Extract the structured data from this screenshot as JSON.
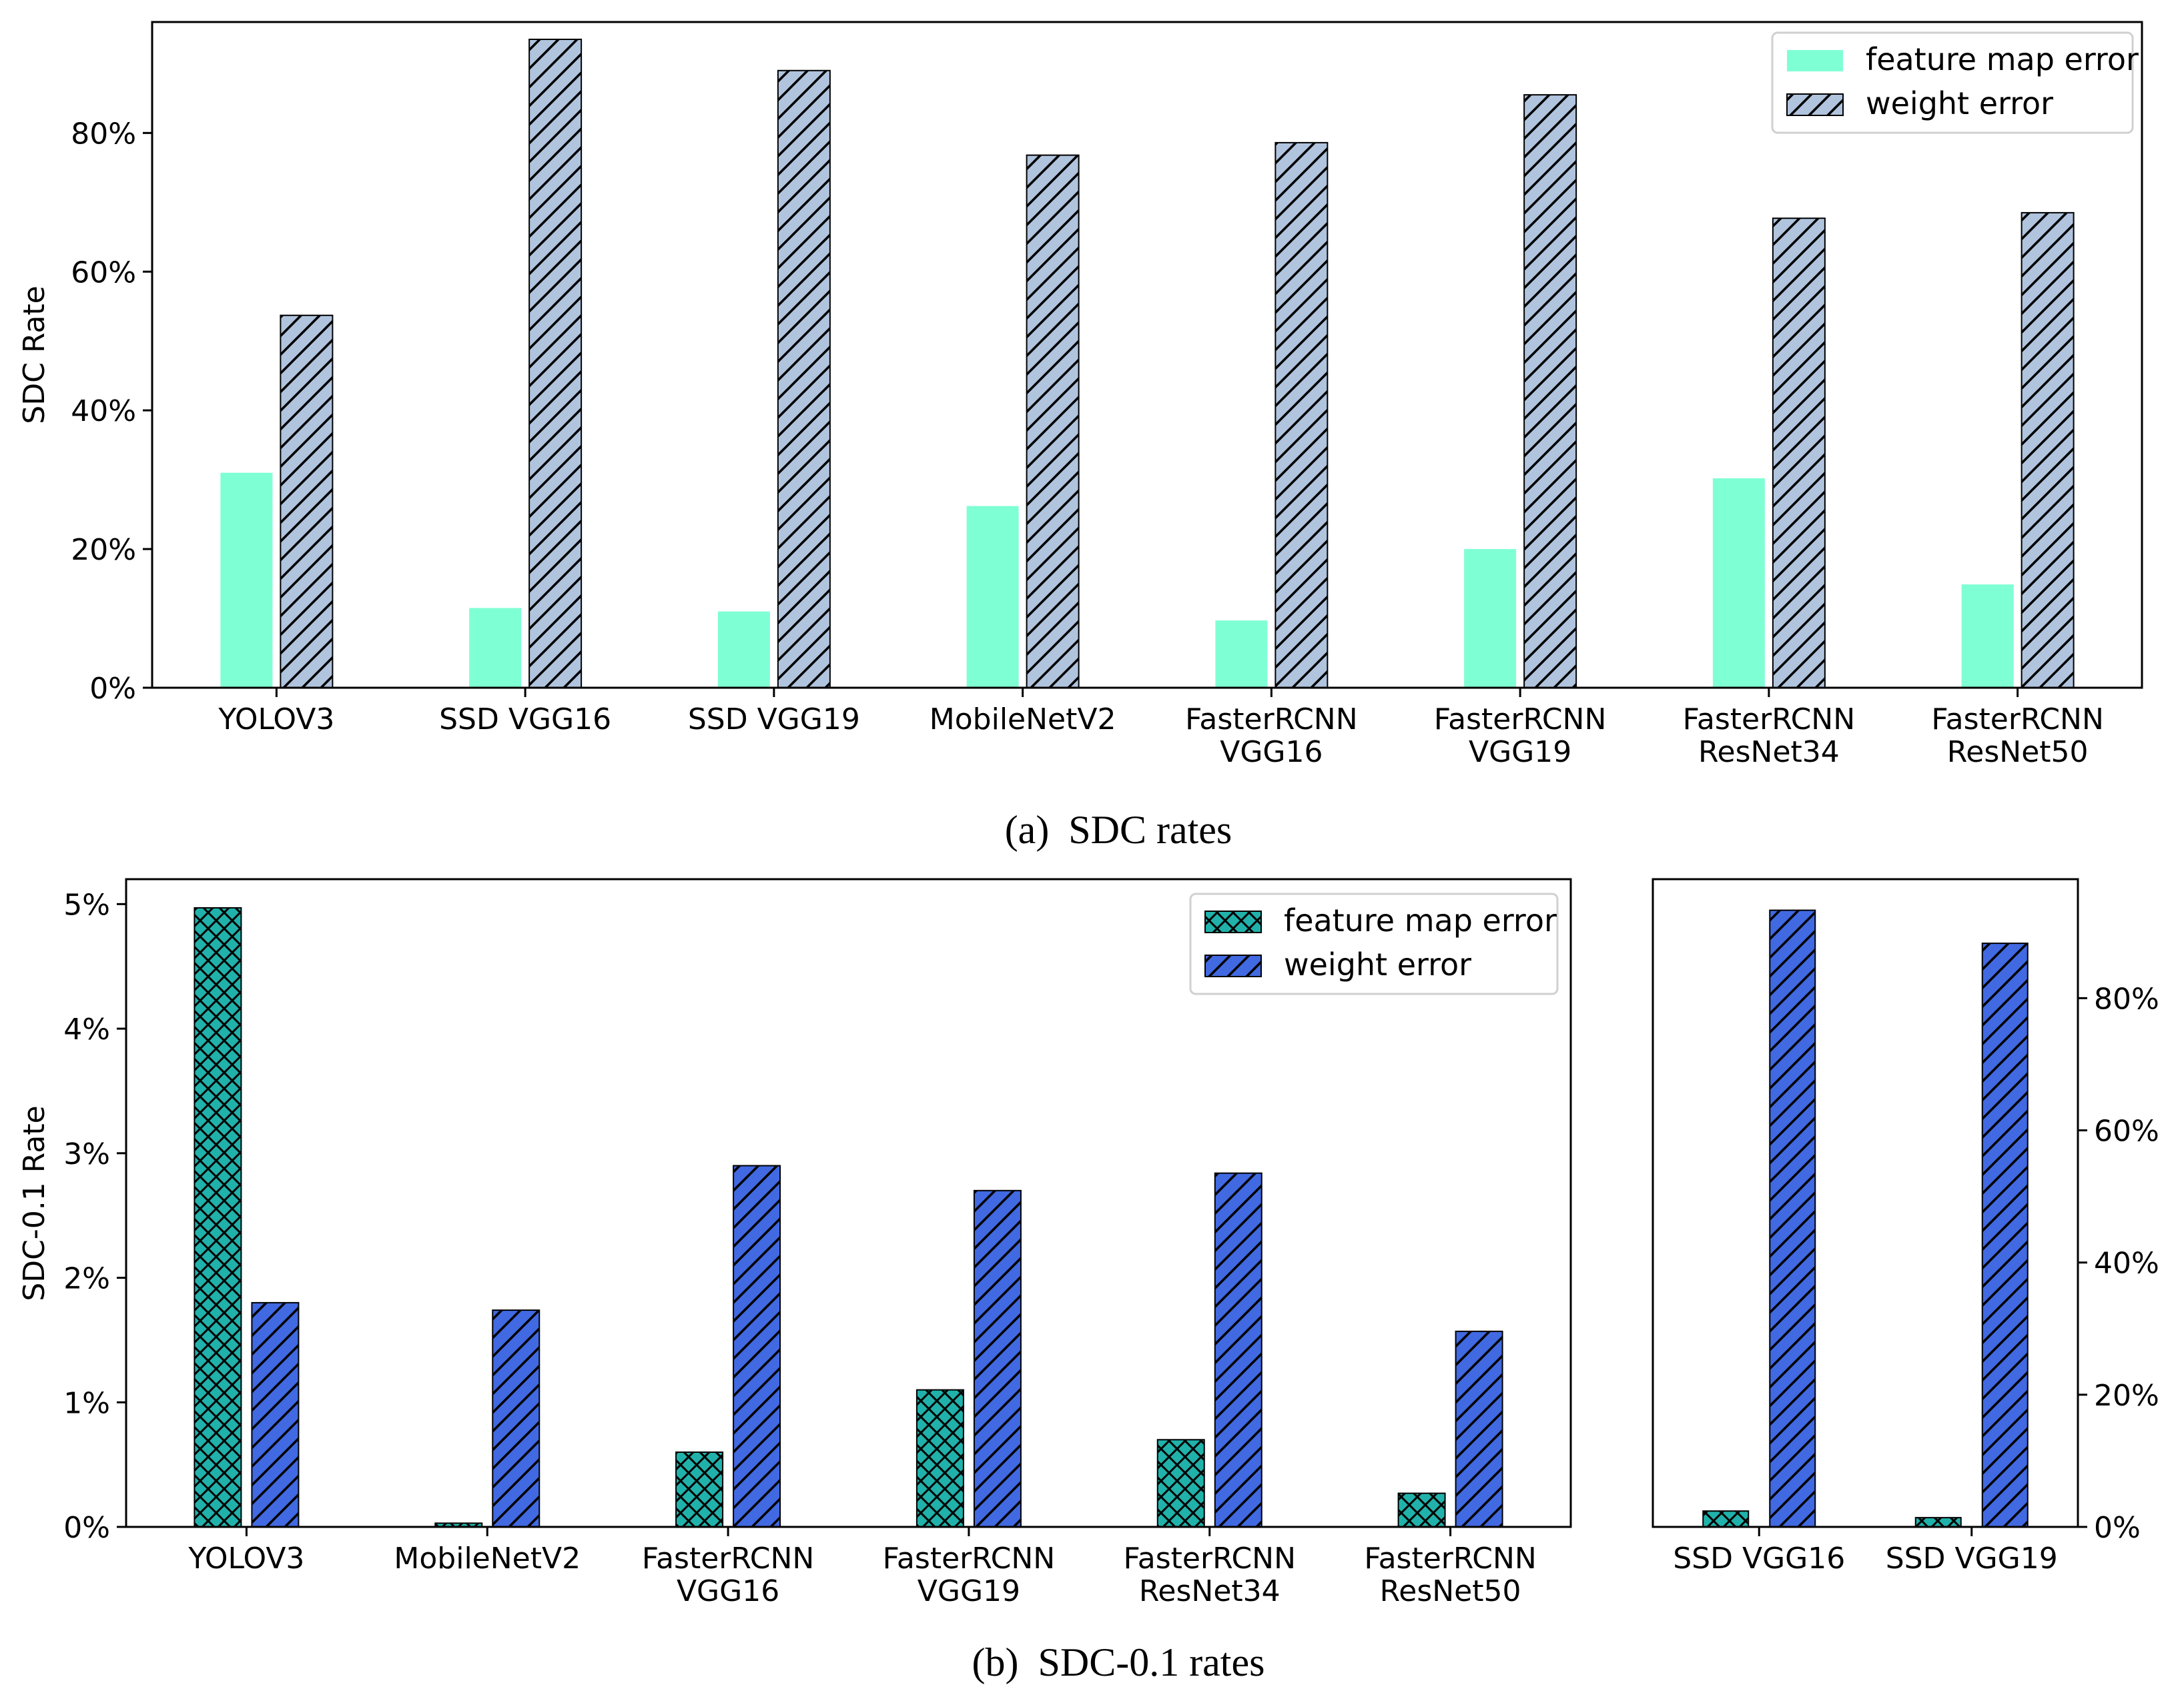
{
  "colors": {
    "a_feature": "#7fffd4",
    "a_weight": "#b0c4de",
    "b_feature": "#20b2aa",
    "b_weight": "#4169e1",
    "hatch": "#000000"
  },
  "panel_a": {
    "caption_tag": "(a)",
    "caption_text": "SDC rates"
  },
  "panel_b": {
    "caption_tag": "(b)",
    "caption_text": "SDC-0.1 rates"
  },
  "chart_data": [
    {
      "id": "a",
      "type": "bar",
      "title": "",
      "xlabel": "",
      "ylabel": "SDC Rate",
      "ylim": [
        0,
        0.96
      ],
      "yticks": [
        0,
        0.2,
        0.4,
        0.6,
        0.8
      ],
      "ytick_labels": [
        "0%",
        "20%",
        "40%",
        "60%",
        "80%"
      ],
      "categories": [
        [
          "YOLOV3"
        ],
        [
          "SSD VGG16"
        ],
        [
          "SSD VGG19"
        ],
        [
          "MobileNetV2"
        ],
        [
          "FasterRCNN",
          "VGG16"
        ],
        [
          "FasterRCNN",
          "VGG19"
        ],
        [
          "FasterRCNN",
          "ResNet34"
        ],
        [
          "FasterRCNN",
          "ResNet50"
        ]
      ],
      "series": [
        {
          "name": "feature map error",
          "values": [
            0.31,
            0.115,
            0.11,
            0.262,
            0.097,
            0.2,
            0.302,
            0.149
          ]
        },
        {
          "name": "weight error",
          "values": [
            0.537,
            0.935,
            0.89,
            0.768,
            0.786,
            0.855,
            0.677,
            0.685
          ]
        }
      ],
      "legend": [
        "feature map error",
        "weight error"
      ],
      "legend_position": "upper right"
    },
    {
      "id": "b_left",
      "type": "bar",
      "title": "",
      "xlabel": "",
      "ylabel": "SDC-0.1 Rate",
      "ylim": [
        0,
        0.052
      ],
      "yticks": [
        0,
        0.01,
        0.02,
        0.03,
        0.04,
        0.05
      ],
      "ytick_labels": [
        "0%",
        "1%",
        "2%",
        "3%",
        "4%",
        "5%"
      ],
      "categories": [
        [
          "YOLOV3"
        ],
        [
          "MobileNetV2"
        ],
        [
          "FasterRCNN",
          "VGG16"
        ],
        [
          "FasterRCNN",
          "VGG19"
        ],
        [
          "FasterRCNN",
          "ResNet34"
        ],
        [
          "FasterRCNN",
          "ResNet50"
        ]
      ],
      "series": [
        {
          "name": "feature map error",
          "values": [
            0.0497,
            0.0003,
            0.006,
            0.011,
            0.007,
            0.0027
          ]
        },
        {
          "name": "weight error",
          "values": [
            0.018,
            0.0174,
            0.029,
            0.027,
            0.0284,
            0.0157
          ]
        }
      ],
      "legend": [
        "feature map error",
        "weight error"
      ],
      "legend_position": "upper right"
    },
    {
      "id": "b_right",
      "type": "bar",
      "title": "",
      "xlabel": "",
      "ylabel": "",
      "ylim": [
        0,
        0.98
      ],
      "yticks": [
        0,
        0.2,
        0.4,
        0.6,
        0.8
      ],
      "ytick_labels": [
        "0%",
        "20%",
        "40%",
        "60%",
        "80%"
      ],
      "yaxis_side": "right",
      "categories": [
        [
          "SSD VGG16"
        ],
        [
          "SSD VGG19"
        ]
      ],
      "series": [
        {
          "name": "feature map error",
          "values": [
            0.024,
            0.014
          ]
        },
        {
          "name": "weight error",
          "values": [
            0.933,
            0.883
          ]
        }
      ]
    }
  ]
}
